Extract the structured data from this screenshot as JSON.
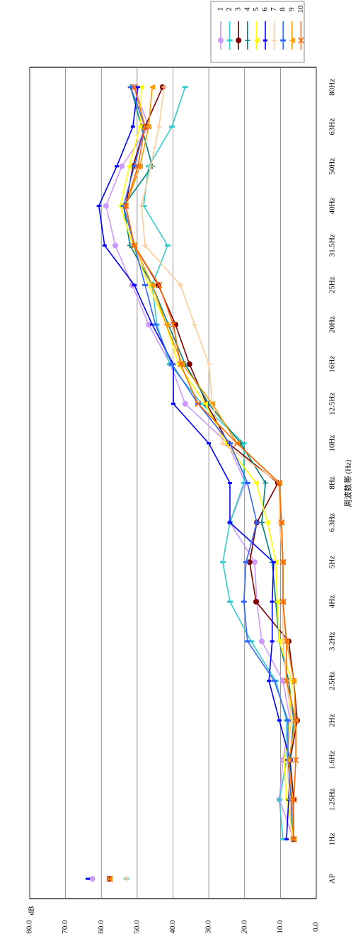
{
  "chart_data": {
    "type": "line",
    "y_label": "dB",
    "x_label": "周波数帯 (Hz)",
    "categories": [
      "AP",
      "1Hz",
      "1.25Hz",
      "1.6Hz",
      "2Hz",
      "2.5Hz",
      "3.2Hz",
      "4Hz",
      "5Hz",
      "6.3Hz",
      "8Hz",
      "10Hz",
      "12.5Hz",
      "16Hz",
      "20Hz",
      "25Hz",
      "31.5Hz",
      "40Hz",
      "50Hz",
      "63Hz",
      "80Hz"
    ],
    "ylim": [
      0,
      80
    ],
    "yticks": [
      {
        "value": 0,
        "label": "0.0"
      },
      {
        "value": 10,
        "label": "10.0"
      },
      {
        "value": 20,
        "label": "20.0"
      },
      {
        "value": 30,
        "label": "30.0"
      },
      {
        "value": 40,
        "label": "40.0"
      },
      {
        "value": 50,
        "label": "50.0"
      },
      {
        "value": 60,
        "label": "60.0"
      },
      {
        "value": 70,
        "label": "70.0"
      },
      {
        "value": 80,
        "label": "80.0"
      }
    ],
    "grid": true,
    "legend": "top-right",
    "series": [
      {
        "name": "1",
        "color": "#cc99ff",
        "marker": "circle",
        "values": [
          62.5,
          6.3,
          10.3,
          9.3,
          7.3,
          9.3,
          15.2,
          16.6,
          17.2,
          24.1,
          19.8,
          24.7,
          36.6,
          40.7,
          46.8,
          51.4,
          56.1,
          58.7,
          54.3,
          46.8,
          50.8
        ]
      },
      {
        "name": "2",
        "color": "#33cccc",
        "marker": "dash",
        "values": [
          53,
          9.3,
          10.3,
          8.3,
          8.3,
          11.3,
          18.2,
          24.1,
          26.1,
          24.1,
          20.2,
          20.2,
          32,
          40.9,
          44.5,
          45.8,
          41.5,
          48.2,
          46.8,
          40.3,
          36.6
        ]
      },
      {
        "name": "3",
        "color": "#800000",
        "marker": "circle",
        "values": [
          57.7,
          6.3,
          6.3,
          7.3,
          5.3,
          6.3,
          7.7,
          16.8,
          18.6,
          16.6,
          10.7,
          24.5,
          30.6,
          35.4,
          39.3,
          44.1,
          50.8,
          53.2,
          51.2,
          47.8,
          42.9
        ]
      },
      {
        "name": "4",
        "color": "#008080",
        "marker": "plus",
        "values": [
          53,
          6.3,
          7.3,
          7.3,
          6.3,
          7.7,
          10.3,
          11.3,
          12.3,
          15.2,
          14.2,
          21.1,
          30,
          36.6,
          41.3,
          45.8,
          52,
          53.8,
          45.8,
          48.8,
          51.8
        ]
      },
      {
        "name": "5",
        "color": "#ffff00",
        "marker": "triangle",
        "values": [
          57.7,
          6.3,
          8.3,
          8.9,
          7.3,
          6.9,
          10.3,
          10.9,
          11.3,
          13.6,
          16.8,
          25.1,
          31,
          38.5,
          41.9,
          46.8,
          51.2,
          54.7,
          52.2,
          49.2,
          48.8
        ]
      },
      {
        "name": "6",
        "color": "#0000ff",
        "marker": "bar",
        "values": [
          63.8,
          8.3,
          7.7,
          7.3,
          10.3,
          13.2,
          12.3,
          12.3,
          11.9,
          24.1,
          24.1,
          30,
          39.9,
          39.9,
          45.8,
          50.8,
          59.1,
          60.7,
          55.7,
          51.2,
          49.8
        ]
      },
      {
        "name": "7",
        "color": "#ffcc99",
        "marker": "plus",
        "values": [
          53,
          6.9,
          7.3,
          8.3,
          6.9,
          8.3,
          9.3,
          9.3,
          9.3,
          10.3,
          10.3,
          26.1,
          29,
          30,
          34,
          37.9,
          47.8,
          48.8,
          46.2,
          43.9,
          42.5
        ]
      },
      {
        "name": "8",
        "color": "#3366ff",
        "marker": "dash",
        "values": [
          57.7,
          6.3,
          6.9,
          7.9,
          7.9,
          11.7,
          19.2,
          20.2,
          19.6,
          16.6,
          19.2,
          24.1,
          33,
          40.3,
          44.9,
          47.8,
          50.8,
          53.8,
          50.8,
          47.8,
          51.8
        ]
      },
      {
        "name": "9",
        "color": "#ff9900",
        "marker": "triangle",
        "values": [
          57.7,
          6.3,
          6.7,
          7.7,
          5.7,
          6.3,
          8.3,
          9.3,
          9.3,
          9.7,
          10.3,
          22.1,
          29,
          37.4,
          41.9,
          45.8,
          50.8,
          53.2,
          49.2,
          46.8,
          45.8
        ]
      },
      {
        "name": "10",
        "color": "#ff6600",
        "marker": "x",
        "values": [
          57.7,
          6.3,
          6.3,
          5.7,
          5.7,
          8.3,
          8.3,
          9.3,
          9.3,
          9.7,
          10.3,
          22.1,
          33,
          37.9,
          39.9,
          43.9,
          50.8,
          53.2,
          49.8,
          47.8,
          50.8
        ]
      }
    ]
  }
}
